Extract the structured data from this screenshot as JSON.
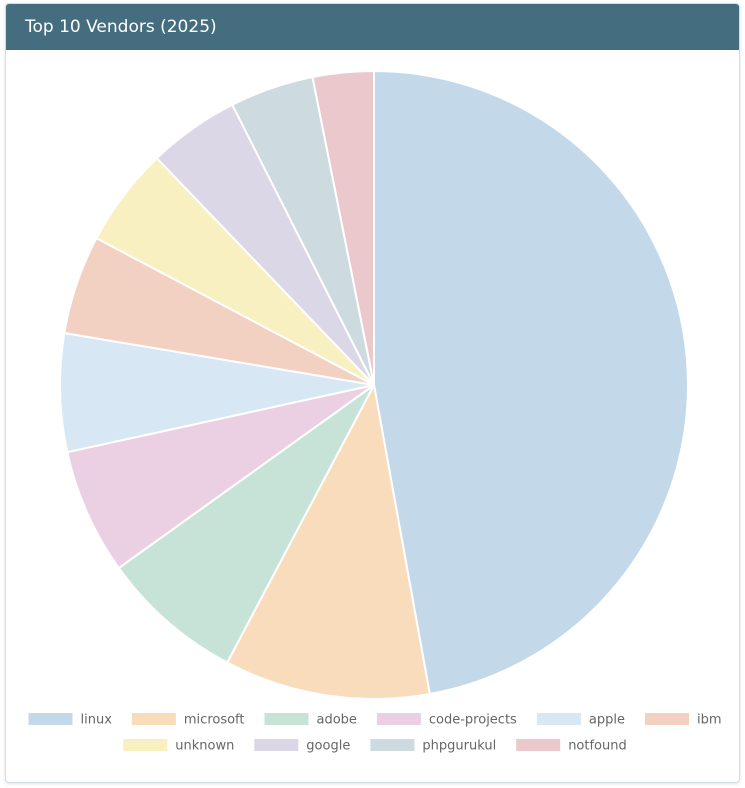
{
  "card": {
    "title": "Top 10 Vendors (2025)"
  },
  "chart_data": {
    "type": "pie",
    "title": "Top 10 Vendors (2025)",
    "legend_position": "bottom",
    "labels": [
      "linux",
      "microsoft",
      "adobe",
      "code-projects",
      "apple",
      "ibm",
      "unknown",
      "google",
      "phpgurukul",
      "notfound"
    ],
    "values": [
      48.1,
      10.8,
      7.5,
      6.6,
      6.2,
      5.2,
      5.2,
      4.8,
      4.4,
      3.2
    ],
    "colors": [
      "#c3d9e9",
      "#f9dcbc",
      "#c7e3d8",
      "#ebd0e4",
      "#d7e8f4",
      "#f2d1c3",
      "#f8f0c0",
      "#dcd7e6",
      "#cddbe0",
      "#ebc8cb"
    ]
  }
}
